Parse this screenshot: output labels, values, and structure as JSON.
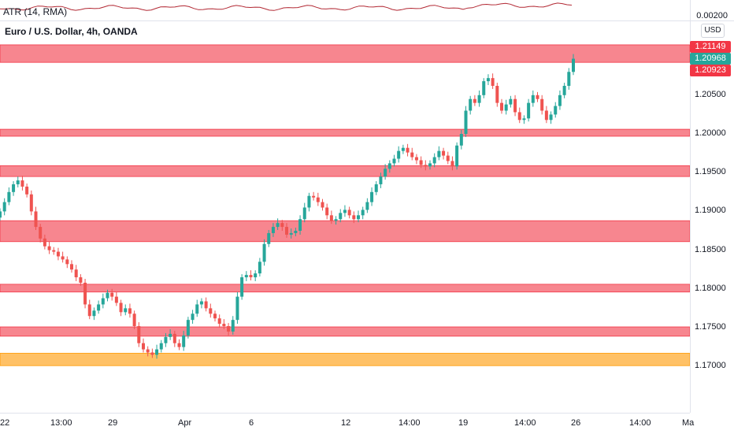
{
  "header": {
    "indicator": "ATR (14, RMA)",
    "indicator_value": "0.00200",
    "title": "Euro / U.S. Dollar, 4h, OANDA",
    "currency": "USD"
  },
  "price_tags": [
    {
      "text": "1.21149",
      "value": 1.21149,
      "color": "#f23645"
    },
    {
      "text": "1.20968",
      "value": 1.20968,
      "color": "#26a69a"
    },
    {
      "text": "1.20923",
      "value": 1.20923,
      "color": "#f23645"
    }
  ],
  "chart_data": {
    "type": "candlestick",
    "y_ticks": [
      {
        "text": "1.20500",
        "value": 1.205
      },
      {
        "text": "1.20000",
        "value": 1.2
      },
      {
        "text": "1.19500",
        "value": 1.195
      },
      {
        "text": "1.19000",
        "value": 1.19
      },
      {
        "text": "1.18500",
        "value": 1.185
      },
      {
        "text": "1.18000",
        "value": 1.18
      },
      {
        "text": "1.17500",
        "value": 1.175
      },
      {
        "text": "1.17000",
        "value": 1.17
      }
    ],
    "x_ticks": [
      "22",
      "13:00",
      "29",
      "Apr",
      "6",
      "12",
      "14:00",
      "19",
      "14:00",
      "26",
      "14:00",
      "Ma"
    ],
    "zones": [
      {
        "low": 1.20923,
        "high": 1.21149,
        "color": "#f23645"
      },
      {
        "low": 1.1997,
        "high": 1.2006,
        "color": "#f23645"
      },
      {
        "low": 1.1945,
        "high": 1.1959,
        "color": "#f23645"
      },
      {
        "low": 1.1861,
        "high": 1.1888,
        "color": "#f23645"
      },
      {
        "low": 1.1796,
        "high": 1.1806,
        "color": "#f23645"
      },
      {
        "low": 1.1739,
        "high": 1.1751,
        "color": "#f23645"
      },
      {
        "low": 1.1701,
        "high": 1.1717,
        "color": "#ff9800"
      }
    ],
    "candles_close": [
      1.19,
      1.1912,
      1.1925,
      1.1935,
      1.194,
      1.1932,
      1.1922,
      1.19,
      1.188,
      1.1865,
      1.1855,
      1.185,
      1.1848,
      1.1842,
      1.1838,
      1.1832,
      1.1825,
      1.1815,
      1.1808,
      1.178,
      1.1765,
      1.1772,
      1.178,
      1.1788,
      1.1795,
      1.179,
      1.1782,
      1.177,
      1.1775,
      1.1768,
      1.1752,
      1.173,
      1.1722,
      1.1718,
      1.1715,
      1.1722,
      1.173,
      1.1738,
      1.1742,
      1.173,
      1.1725,
      1.174,
      1.176,
      1.1768,
      1.178,
      1.1784,
      1.1775,
      1.1768,
      1.1762,
      1.1755,
      1.1752,
      1.1745,
      1.176,
      1.179,
      1.1815,
      1.1818,
      1.1815,
      1.182,
      1.1835,
      1.1858,
      1.1872,
      1.188,
      1.1885,
      1.188,
      1.187,
      1.1872,
      1.1875,
      1.189,
      1.1905,
      1.192,
      1.1918,
      1.1912,
      1.1905,
      1.1895,
      1.1888,
      1.189,
      1.1898,
      1.1902,
      1.1895,
      1.189,
      1.1895,
      1.1902,
      1.1912,
      1.1925,
      1.1935,
      1.1945,
      1.1955,
      1.1962,
      1.1968,
      1.1978,
      1.1982,
      1.1976,
      1.197,
      1.1966,
      1.196,
      1.1958,
      1.1962,
      1.197,
      1.1978,
      1.1972,
      1.1965,
      1.1958,
      1.1985,
      1.2,
      1.203,
      1.2045,
      1.204,
      1.205,
      1.2068,
      1.2072,
      1.2062,
      1.204,
      1.203,
      1.2038,
      1.2045,
      1.2028,
      1.2018,
      1.202,
      1.204,
      1.205,
      1.2045,
      1.203,
      1.2018,
      1.2025,
      1.2036,
      1.205,
      1.2062,
      1.208,
      1.2097
    ]
  }
}
